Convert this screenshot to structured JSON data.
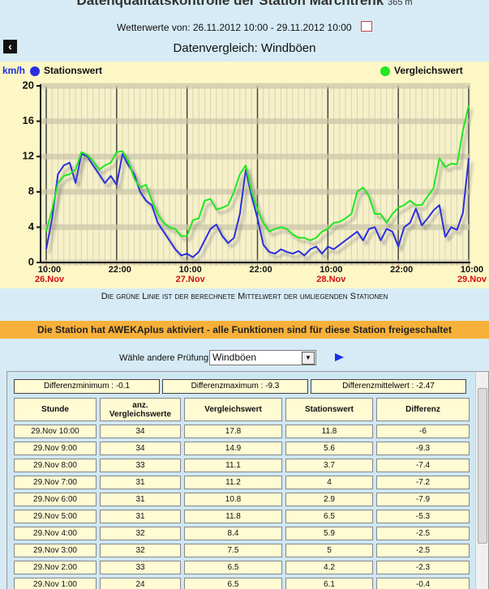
{
  "header": {
    "title": "Datenqualitätskontrolle der Station Marchtrenk",
    "altitude": "365 m",
    "period": "Wetterwerte von: 26.11.2012 10:00 - 29.11.2012 10:00",
    "subtitle": "Datenvergleich: Windböen"
  },
  "chart_data": {
    "type": "line",
    "y_label": "km/h",
    "categories": [
      "10:00",
      null,
      null,
      null,
      null,
      null,
      null,
      null,
      null,
      null,
      null,
      null,
      "22:00",
      null,
      null,
      null,
      null,
      null,
      null,
      null,
      null,
      null,
      null,
      null,
      "10:00",
      null,
      null,
      null,
      null,
      null,
      null,
      null,
      null,
      null,
      null,
      null,
      "22:00",
      null,
      null,
      null,
      null,
      null,
      null,
      null,
      null,
      null,
      null,
      null,
      "10:00",
      null,
      null,
      null,
      null,
      null,
      null,
      null,
      null,
      null,
      null,
      null,
      "22:00",
      null,
      null,
      null,
      null,
      null,
      null,
      null,
      null,
      null,
      null,
      null,
      "10:00"
    ],
    "category_dates": [
      "26.Nov",
      null,
      null,
      null,
      null,
      null,
      null,
      null,
      null,
      null,
      null,
      null,
      null,
      null,
      null,
      null,
      null,
      null,
      null,
      null,
      null,
      null,
      null,
      null,
      "27.Nov",
      null,
      null,
      null,
      null,
      null,
      null,
      null,
      null,
      null,
      null,
      null,
      null,
      null,
      null,
      null,
      null,
      null,
      null,
      null,
      null,
      null,
      null,
      null,
      "28.Nov",
      null,
      null,
      null,
      null,
      null,
      null,
      null,
      null,
      null,
      null,
      null,
      null,
      null,
      null,
      null,
      null,
      null,
      null,
      null,
      null,
      null,
      null,
      null,
      "29.Nov"
    ],
    "series": [
      {
        "name": "Stationswert",
        "color": "#2a2ee0",
        "values": [
          1.5,
          5,
          10,
          11,
          11.3,
          9,
          12.3,
          12,
          11,
          10,
          9,
          9.8,
          8.8,
          12.3,
          11,
          10,
          8,
          7,
          6.5,
          4.5,
          3.5,
          2.5,
          1.5,
          0.8,
          1,
          0.6,
          1.2,
          2.5,
          3.8,
          4.3,
          3,
          2.2,
          2.8,
          5.5,
          10.5,
          7.5,
          5,
          2,
          1.2,
          1,
          1.5,
          1.2,
          1,
          1.3,
          0.8,
          1.5,
          1.8,
          1,
          1.8,
          1.5,
          2,
          2.5,
          3,
          3.5,
          2.5,
          3.8,
          4,
          2.5,
          3.8,
          3.5,
          1.8,
          4,
          4.5,
          6.1,
          4.2,
          5,
          5.9,
          6.5,
          2.9,
          4,
          3.7,
          5.6,
          11.8
        ]
      },
      {
        "name": "Vergleichswert",
        "color": "#22e622",
        "values": [
          3.5,
          6,
          9,
          9.8,
          10,
          10.5,
          12.5,
          12.2,
          11.5,
          10.5,
          11,
          11.3,
          12.5,
          12.6,
          11.5,
          9.5,
          8.5,
          8.8,
          7,
          5.5,
          4.5,
          4,
          3.8,
          3,
          3,
          4.8,
          5,
          7,
          7.2,
          6,
          6.2,
          6.5,
          8,
          10,
          11,
          8,
          6,
          4.5,
          3.5,
          3.8,
          4,
          3.8,
          3.2,
          2.8,
          2.8,
          2.5,
          2.8,
          3.5,
          3.8,
          4.5,
          4.6,
          5,
          5.5,
          8,
          8.5,
          7.5,
          5.5,
          5.5,
          4.5,
          5.5,
          6.2,
          6.5,
          7,
          6.5,
          6.5,
          7.5,
          8.4,
          11.8,
          10.8,
          11.2,
          11.1,
          14.9,
          17.8
        ]
      }
    ],
    "ylim": [
      0,
      20
    ],
    "yticks": [
      0,
      4,
      8,
      12,
      16,
      20
    ],
    "grid": true
  },
  "note": "Die grüne Linie ist der berechnete Mittelwert der umliegenden Stationen",
  "banner": "Die Station hat AWEKAplus aktiviert - alle Funktionen sind für diese Station freigeschaltet",
  "selector": {
    "label": "Wähle andere Prüfung",
    "value": "Windböen"
  },
  "stats": [
    "Differenzminimum : -0.1",
    "Differenzmaximum : -9.3",
    "Differenzmittelwert : -2.47"
  ],
  "table": {
    "columns": [
      "Stunde",
      "anz. Vergleichswerte",
      "Vergleichswert",
      "Stationswert",
      "Differenz"
    ],
    "rows": [
      [
        "29.Nov 10:00",
        34,
        17.8,
        11.8,
        -6
      ],
      [
        "29.Nov 9:00",
        34,
        14.9,
        5.6,
        -9.3
      ],
      [
        "29.Nov 8:00",
        33,
        11.1,
        3.7,
        -7.4
      ],
      [
        "29.Nov 7:00",
        31,
        11.2,
        4,
        -7.2
      ],
      [
        "29.Nov 6:00",
        31,
        10.8,
        2.9,
        -7.9
      ],
      [
        "29.Nov 5:00",
        31,
        11.8,
        6.5,
        -5.3
      ],
      [
        "29.Nov 4:00",
        32,
        8.4,
        5.9,
        -2.5
      ],
      [
        "29.Nov 3:00",
        32,
        7.5,
        5,
        -2.5
      ],
      [
        "29.Nov 2:00",
        33,
        6.5,
        4.2,
        -2.3
      ],
      [
        "29.Nov 1:00",
        24,
        6.5,
        6.1,
        -0.4
      ]
    ]
  }
}
